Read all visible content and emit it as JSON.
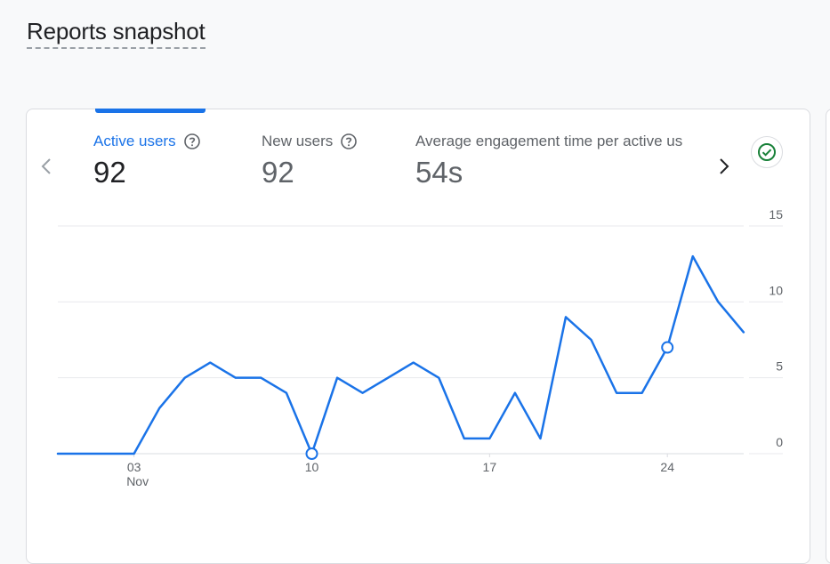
{
  "page": {
    "title": "Reports snapshot"
  },
  "metrics": [
    {
      "label": "Active users",
      "value": "92",
      "active": true
    },
    {
      "label": "New users",
      "value": "92",
      "active": false
    },
    {
      "label": "Average engagement time per active us",
      "value": "54s",
      "active": false
    }
  ],
  "icons": {
    "prev": "chevron-left-icon",
    "next": "chevron-right-icon",
    "help": "help-circle-icon",
    "status": "check-circle-icon"
  },
  "colors": {
    "accent": "#1a73e8",
    "status": "#188038"
  },
  "chart_data": {
    "type": "line",
    "x_tick_labels": [
      "03",
      "10",
      "17",
      "24"
    ],
    "x_month_label": "Nov",
    "y_ticks": [
      0,
      5,
      10,
      15
    ],
    "ylim": [
      0,
      15
    ],
    "grid": true,
    "series": [
      {
        "values": [
          0,
          0,
          0,
          0,
          3,
          5,
          6,
          5,
          5,
          4,
          0,
          5,
          4,
          5,
          6,
          5,
          1,
          1,
          4,
          1,
          9,
          7.5,
          4,
          4,
          7,
          13,
          10,
          8
        ],
        "color": "#1a73e8"
      }
    ],
    "highlight_points": [
      10,
      24
    ]
  }
}
